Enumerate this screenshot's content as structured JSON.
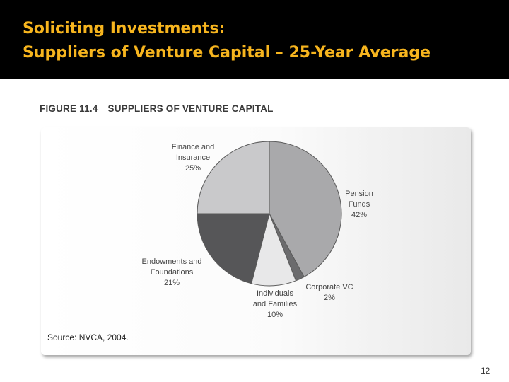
{
  "slide": {
    "title_line1": "Soliciting Investments:",
    "title_line2": "Suppliers of Venture Capital – 25-Year Average",
    "page_number": "12"
  },
  "figure": {
    "number": "FIGURE 11.4",
    "caption": "SUPPLIERS OF VENTURE CAPITAL",
    "source": "Source: NVCA, 2004."
  },
  "chart_data": {
    "type": "pie",
    "slices": [
      {
        "name": "Pension Funds",
        "label_lines": [
          "Pension",
          "Funds",
          "42%"
        ],
        "value": 42,
        "color": "#a9a9ab"
      },
      {
        "name": "Corporate VC",
        "label_lines": [
          "Corporate VC",
          "2%"
        ],
        "value": 2,
        "color": "#6b6b6d"
      },
      {
        "name": "Individuals and Families",
        "label_lines": [
          "Individuals",
          "and Families",
          "10%"
        ],
        "value": 10,
        "color": "#e8e8e9"
      },
      {
        "name": "Endowments and Foundations",
        "label_lines": [
          "Endowments and",
          "Foundations",
          "21%"
        ],
        "value": 21,
        "color": "#565658"
      },
      {
        "name": "Finance and Insurance",
        "label_lines": [
          "Finance and",
          "Insurance",
          "25%"
        ],
        "value": 25,
        "color": "#c9c9cb"
      }
    ],
    "start_angle": "12 o'clock",
    "direction": "clockwise",
    "slice_border_color": "#5a5a5a"
  }
}
